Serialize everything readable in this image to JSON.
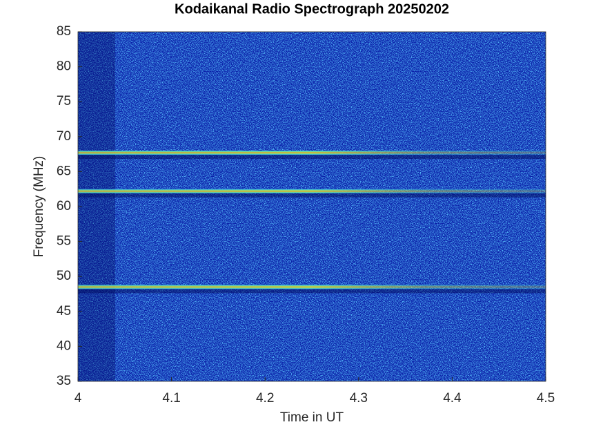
{
  "chart_data": {
    "type": "spectrogram",
    "title": "Kodaikanal Radio Spectrograph  20250202",
    "x_label": "Time in UT",
    "y_label": "Frequency (MHz)",
    "xlim": [
      4,
      4.5
    ],
    "xticks": [
      4,
      4.1,
      4.2,
      4.3,
      4.4,
      4.5
    ],
    "ylim": [
      35,
      85
    ],
    "yticks": [
      35,
      40,
      45,
      50,
      55,
      60,
      65,
      70,
      75,
      80,
      85
    ],
    "emission_lines": [
      67.7,
      62.2,
      48.5
    ]
  }
}
